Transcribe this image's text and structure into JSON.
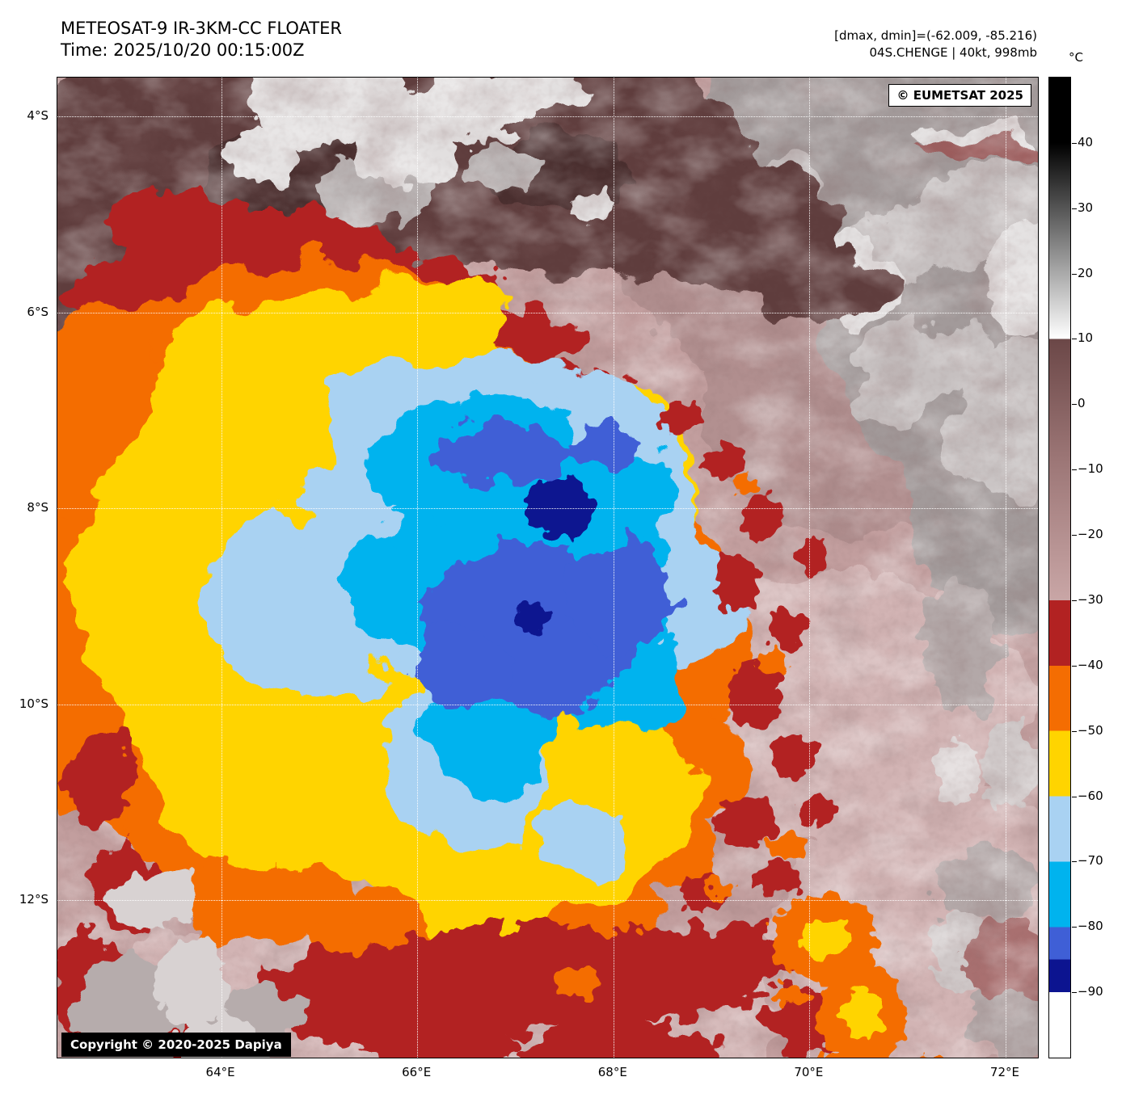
{
  "header": {
    "title_line1": "METEOSAT-9 IR-3KM-CC FLOATER",
    "title_line2": "Time: 2025/10/20 00:15:00Z",
    "annotation_line1": "[dmax, dmin]=(-62.009, -85.216)",
    "annotation_line2": "04S.CHENGE | 40kt, 998mb"
  },
  "map": {
    "credit_overlay": "© EUMETSAT 2025",
    "copyright_overlay": "Copyright © 2020-2025 Dapiya",
    "lat_ticks": [
      "4°S",
      "6°S",
      "8°S",
      "10°S",
      "12°S"
    ],
    "lon_ticks": [
      "64°E",
      "66°E",
      "68°E",
      "70°E",
      "72°E"
    ]
  },
  "colorbar": {
    "unit": "°C",
    "ticks": [
      {
        "v": 40,
        "label": "40"
      },
      {
        "v": 30,
        "label": "30"
      },
      {
        "v": 20,
        "label": "20"
      },
      {
        "v": 10,
        "label": "10"
      },
      {
        "v": 0,
        "label": "0"
      },
      {
        "v": -10,
        "label": "−10"
      },
      {
        "v": -20,
        "label": "−20"
      },
      {
        "v": -30,
        "label": "−30"
      },
      {
        "v": -40,
        "label": "−40"
      },
      {
        "v": -50,
        "label": "−50"
      },
      {
        "v": -60,
        "label": "−60"
      },
      {
        "v": -70,
        "label": "−70"
      },
      {
        "v": -80,
        "label": "−80"
      },
      {
        "v": -90,
        "label": "−90"
      }
    ],
    "stops": [
      {
        "v": 50,
        "c": "#000000"
      },
      {
        "v": 40,
        "c": "#000000"
      },
      {
        "v": 10,
        "c": "#ffffff"
      },
      {
        "v": 10,
        "c": "#6b4747"
      },
      {
        "v": -8,
        "c": "#9b7575"
      },
      {
        "v": -30,
        "c": "#c9a6a6"
      },
      {
        "v": -30,
        "c": "#b22222"
      },
      {
        "v": -40,
        "c": "#b22222"
      },
      {
        "v": -40,
        "c": "#f46d02"
      },
      {
        "v": -50,
        "c": "#f46d02"
      },
      {
        "v": -50,
        "c": "#ffd400"
      },
      {
        "v": -60,
        "c": "#ffd400"
      },
      {
        "v": -60,
        "c": "#a9d2f2"
      },
      {
        "v": -70,
        "c": "#a9d2f2"
      },
      {
        "v": -70,
        "c": "#00b3ee"
      },
      {
        "v": -80,
        "c": "#00b3ee"
      },
      {
        "v": -80,
        "c": "#3f5fd6"
      },
      {
        "v": -85,
        "c": "#3f5fd6"
      },
      {
        "v": -85,
        "c": "#0c1490"
      },
      {
        "v": -90,
        "c": "#0c1490"
      },
      {
        "v": -90,
        "c": "#ffffff"
      },
      {
        "v": -100,
        "c": "#ffffff"
      }
    ]
  },
  "colors": {
    "background": "#c29e9e",
    "background_light": "#d2b4b4",
    "background_dark": "#b29090",
    "cloud_gray": "#a29a9a",
    "cloud_gray_light": "#c6c0c0",
    "cloud_white": "#e2dfdf",
    "warm_maroon": "#5e3c3c",
    "warm_maroon_dark": "#4a2e2e",
    "reddish_streak": "#9c5b5b",
    "cold_dark_red": "#b22222",
    "cold_orange": "#f46d02",
    "cold_yellow": "#ffd400",
    "cold_pale_blue": "#a9d2f2",
    "cold_cyan": "#00b3ee",
    "cold_royal_blue": "#3f5fd6",
    "cold_navy": "#0c1490"
  }
}
